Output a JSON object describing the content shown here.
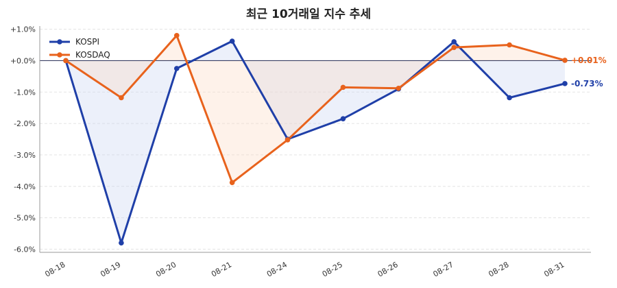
{
  "chart_data": {
    "type": "line",
    "title": "최근 10거래일 지수 추세",
    "xlabel": "",
    "ylabel": "",
    "categories": [
      "08-18",
      "08-19",
      "08-20",
      "08-21",
      "08-24",
      "08-25",
      "08-26",
      "08-27",
      "08-28",
      "08-31"
    ],
    "series": [
      {
        "name": "KOSPI",
        "color": "#1f3fa8",
        "fill_color": "#c9d3f2",
        "values": [
          0.0,
          -5.8,
          -0.25,
          0.62,
          -2.5,
          -1.85,
          -0.9,
          0.6,
          -1.18,
          -0.73
        ],
        "end_label": "-0.73%"
      },
      {
        "name": "KOSDAQ",
        "color": "#e8621c",
        "fill_color": "#fbd9c4",
        "values": [
          0.0,
          -1.18,
          0.8,
          -3.88,
          -2.52,
          -0.85,
          -0.88,
          0.42,
          0.5,
          0.01
        ],
        "end_label": "+0.01%"
      }
    ],
    "y_ticks": [
      "+1.0%",
      "+0.0%",
      "-1.0%",
      "-2.0%",
      "-3.0%",
      "-4.0%",
      "-5.0%",
      "-6.0%"
    ],
    "y_tick_values": [
      1,
      0,
      -1,
      -2,
      -3,
      -4,
      -5,
      -6
    ],
    "ylim": [
      -6.1,
      1.1
    ],
    "baseline": 0,
    "grid": true,
    "legend_position": "top-left"
  }
}
